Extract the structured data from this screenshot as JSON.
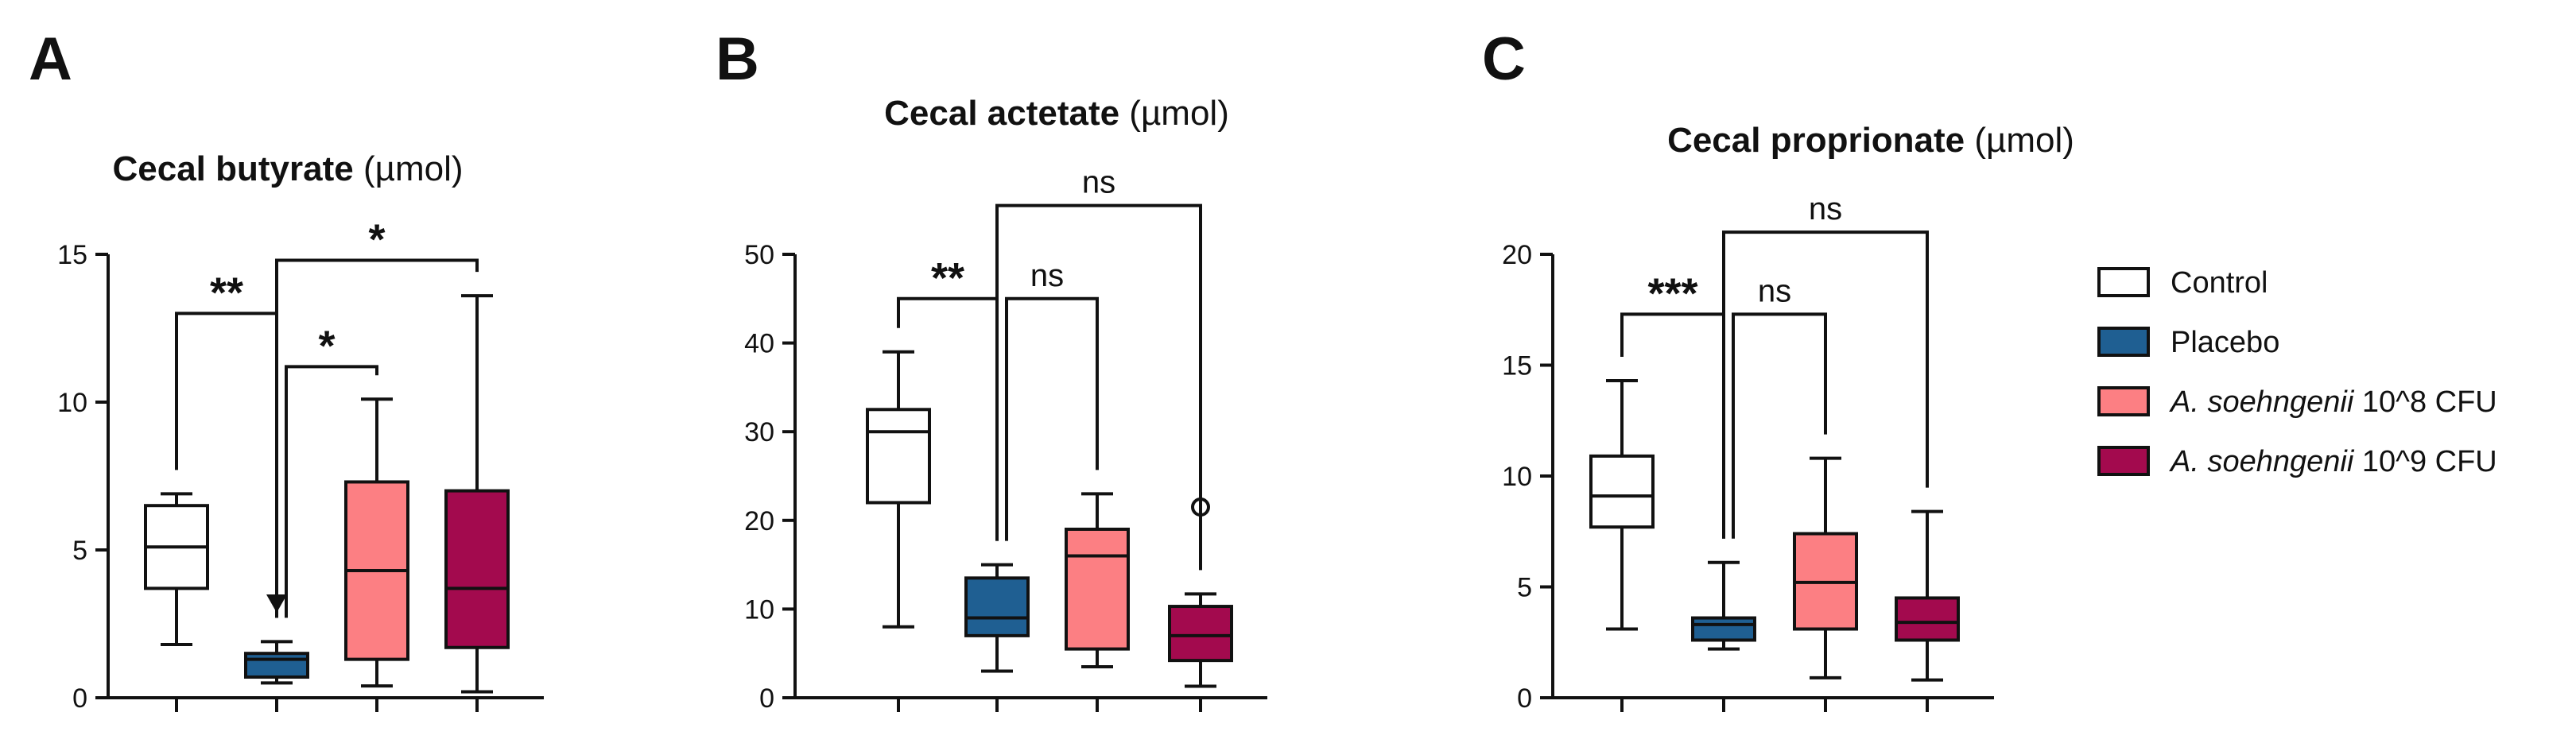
{
  "chart_data": [
    {
      "type": "box",
      "panel": "A",
      "title_bold": "Cecal butyrate",
      "title_unit": " (µmol)",
      "ylim": [
        0,
        15
      ],
      "yticks": [
        0,
        5,
        10,
        15
      ],
      "ytick_labels": [
        "0",
        "5",
        "10",
        "15"
      ],
      "groups": [
        {
          "name": "Control",
          "min": 1.8,
          "q1": 3.7,
          "median": 5.1,
          "q3": 6.5,
          "max": 6.9,
          "outliers": []
        },
        {
          "name": "Placebo",
          "min": 0.5,
          "q1": 0.7,
          "median": 1.3,
          "q3": 1.5,
          "max": 1.9,
          "outliers": [],
          "marker_above": 3.2
        },
        {
          "name": "A. soehngenii 10^8 CFU",
          "min": 0.4,
          "q1": 1.3,
          "median": 4.3,
          "q3": 7.3,
          "max": 10.1,
          "outliers": []
        },
        {
          "name": "A. soehngenii 10^9 CFU",
          "min": 0.2,
          "q1": 1.7,
          "median": 3.7,
          "q3": 7.0,
          "max": 13.6,
          "outliers": []
        }
      ],
      "comparisons": [
        {
          "from": 0,
          "to": 1,
          "label": "**",
          "height": 13.0
        },
        {
          "from": 1,
          "to": 2,
          "label": "*",
          "height": 11.2
        },
        {
          "from": 1,
          "to": 3,
          "label": "*",
          "height": 14.8
        }
      ]
    },
    {
      "type": "box",
      "panel": "B",
      "title_bold": "Cecal actetate",
      "title_unit": " (µmol)",
      "ylim": [
        0,
        50
      ],
      "yticks": [
        0,
        10,
        20,
        30,
        40,
        50
      ],
      "ytick_labels": [
        "0",
        "10",
        "20",
        "30",
        "40",
        "50"
      ],
      "groups": [
        {
          "name": "Control",
          "min": 8.0,
          "q1": 22.0,
          "median": 30.0,
          "q3": 32.5,
          "max": 39.0,
          "outliers": []
        },
        {
          "name": "Placebo",
          "min": 3.0,
          "q1": 7.0,
          "median": 9.0,
          "q3": 13.5,
          "max": 15.0,
          "outliers": []
        },
        {
          "name": "A. soehngenii 10^8 CFU",
          "min": 3.5,
          "q1": 5.5,
          "median": 16.0,
          "q3": 19.0,
          "max": 23.0,
          "outliers": []
        },
        {
          "name": "A. soehngenii 10^9 CFU",
          "min": 1.3,
          "q1": 4.2,
          "median": 7.0,
          "q3": 10.3,
          "max": 11.7,
          "outliers": [
            21.5
          ]
        }
      ],
      "comparisons": [
        {
          "from": 0,
          "to": 1,
          "label": "**",
          "height": 45.0
        },
        {
          "from": 1,
          "to": 2,
          "label": "ns",
          "height": 45.0
        },
        {
          "from": 1,
          "to": 3,
          "label": "ns",
          "height": 55.5
        }
      ]
    },
    {
      "type": "box",
      "panel": "C",
      "title_bold": "Cecal proprionate",
      "title_unit": " (µmol)",
      "ylim": [
        0,
        20
      ],
      "yticks": [
        0,
        5,
        10,
        15,
        20
      ],
      "ytick_labels": [
        "0",
        "5",
        "10",
        "15",
        "20"
      ],
      "groups": [
        {
          "name": "Control",
          "min": 3.1,
          "q1": 7.7,
          "median": 9.1,
          "q3": 10.9,
          "max": 14.3,
          "outliers": []
        },
        {
          "name": "Placebo",
          "min": 2.2,
          "q1": 2.6,
          "median": 3.3,
          "q3": 3.6,
          "max": 6.1,
          "outliers": []
        },
        {
          "name": "A. soehngenii 10^8 CFU",
          "min": 0.9,
          "q1": 3.1,
          "median": 5.2,
          "q3": 7.4,
          "max": 10.8,
          "outliers": []
        },
        {
          "name": "A. soehngenii 10^9 CFU",
          "min": 0.8,
          "q1": 2.6,
          "median": 3.4,
          "q3": 4.5,
          "max": 8.4,
          "outliers": []
        }
      ],
      "comparisons": [
        {
          "from": 0,
          "to": 1,
          "label": "***",
          "height": 17.3
        },
        {
          "from": 1,
          "to": 2,
          "label": "ns",
          "height": 17.3
        },
        {
          "from": 1,
          "to": 3,
          "label": "ns",
          "height": 21.0
        }
      ]
    }
  ],
  "legend": [
    {
      "name": "Control",
      "italic": "",
      "rest": "Control",
      "color": "#ffffff"
    },
    {
      "name": "Placebo",
      "italic": "",
      "rest": "Placebo",
      "color": "#1f5f92"
    },
    {
      "name": "A. soehngenii 10^8 CFU",
      "italic": "A. soehngenii",
      "rest": " 10^8 CFU",
      "color": "#fc7f83"
    },
    {
      "name": "A. soehngenii 10^9 CFU",
      "italic": "A. soehngenii",
      "rest": " 10^9 CFU",
      "color": "#a30a4e"
    }
  ],
  "colors": {
    "Control": "#ffffff",
    "Placebo": "#1f5f92",
    "A. soehngenii 10^8 CFU": "#fc7f83",
    "A. soehngenii 10^9 CFU": "#a30a4e",
    "ink": "#111111"
  }
}
